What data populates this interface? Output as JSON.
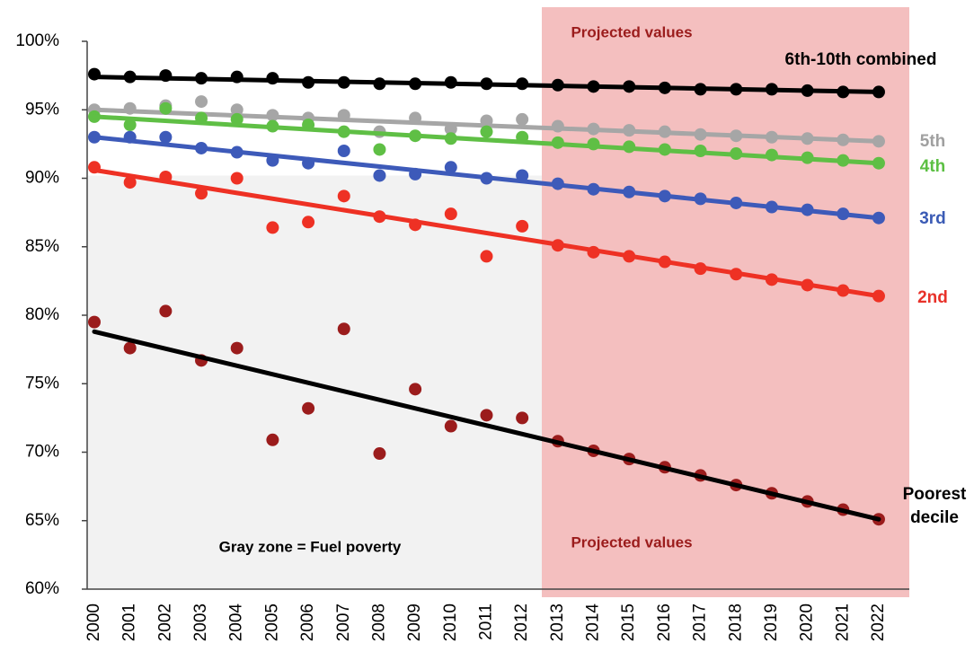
{
  "chart_data": {
    "type": "scatter-trend",
    "categories": [
      "2000",
      "2001",
      "2002",
      "2003",
      "2004",
      "2005",
      "2006",
      "2007",
      "2008",
      "2009",
      "2010",
      "2011",
      "2012",
      "2013",
      "2014",
      "2015",
      "2016",
      "2017",
      "2018",
      "2019",
      "2020",
      "2021",
      "2022"
    ],
    "ylim": [
      60,
      100
    ],
    "yticks": [
      {
        "value": 60,
        "label": "60%"
      },
      {
        "value": 65,
        "label": "65%"
      },
      {
        "value": 70,
        "label": "70%"
      },
      {
        "value": 75,
        "label": "75%"
      },
      {
        "value": 80,
        "label": "80%"
      },
      {
        "value": 85,
        "label": "85%"
      },
      {
        "value": 90,
        "label": "90%"
      },
      {
        "value": 95,
        "label": "95%"
      },
      {
        "value": 100,
        "label": "100%"
      }
    ],
    "fuel_poverty_level": 90.2,
    "annotations": [
      "Projected values",
      "Projected values",
      "Gray zone = Fuel poverty"
    ],
    "series": [
      {
        "name": "6th-10th combined",
        "color": "#000000",
        "label_color": "#000000",
        "trend_color": "#000000",
        "trend": [
          97.4,
          96.3
        ],
        "values": [
          97.6,
          97.4,
          97.5,
          97.3,
          97.4,
          97.3,
          97.0,
          97.0,
          96.9,
          96.9,
          97.0,
          96.9,
          96.9,
          96.8,
          96.7,
          96.7,
          96.6,
          96.5,
          96.5,
          96.5,
          96.4,
          96.3,
          96.3
        ]
      },
      {
        "name": "5th",
        "color": "#a6a6a6",
        "label_color": "#a0a0a0",
        "trend_color": "#a6a6a6",
        "trend": [
          95.0,
          92.7
        ],
        "values": [
          95.0,
          95.1,
          95.3,
          95.6,
          95.0,
          94.6,
          94.4,
          94.6,
          93.4,
          94.4,
          93.6,
          94.2,
          94.3,
          93.8,
          93.6,
          93.5,
          93.4,
          93.2,
          93.1,
          93.0,
          92.9,
          92.8,
          92.7
        ]
      },
      {
        "name": "4th",
        "color": "#5fbf45",
        "label_color": "#5cc043",
        "trend_color": "#5fbf45",
        "trend": [
          94.5,
          91.1
        ],
        "values": [
          94.5,
          93.9,
          95.1,
          94.4,
          94.3,
          93.8,
          93.9,
          93.4,
          92.1,
          93.1,
          92.9,
          93.4,
          93.0,
          92.6,
          92.5,
          92.3,
          92.1,
          92.0,
          91.8,
          91.7,
          91.5,
          91.3,
          91.1
        ]
      },
      {
        "name": "3rd",
        "color": "#3d5ab9",
        "label_color": "#3b5bb5",
        "trend_color": "#3d5ab9",
        "trend": [
          93.0,
          87.1
        ],
        "values": [
          93.0,
          93.0,
          93.0,
          92.2,
          91.9,
          91.3,
          91.1,
          92.0,
          90.2,
          90.3,
          90.8,
          90.0,
          90.2,
          89.6,
          89.2,
          89.0,
          88.7,
          88.5,
          88.2,
          87.9,
          87.7,
          87.4,
          87.1
        ]
      },
      {
        "name": "2nd",
        "color": "#ee3124",
        "label_color": "#e8322a",
        "trend_color": "#ee3124",
        "trend": [
          90.6,
          81.4
        ],
        "values": [
          90.8,
          89.7,
          90.1,
          88.9,
          90.0,
          86.4,
          86.8,
          88.7,
          87.2,
          86.6,
          87.4,
          84.3,
          86.5,
          85.1,
          84.6,
          84.3,
          83.9,
          83.4,
          83.0,
          82.6,
          82.2,
          81.8,
          81.4
        ]
      },
      {
        "name": "Poorest decile",
        "color": "#9b1c1c",
        "label_color": "#000000",
        "trend_color": "#000000",
        "trend": [
          78.8,
          65.1
        ],
        "values": [
          79.5,
          77.6,
          80.3,
          76.7,
          77.6,
          70.9,
          73.2,
          79.0,
          69.9,
          74.6,
          71.9,
          72.7,
          72.5,
          70.8,
          70.1,
          69.5,
          68.9,
          68.3,
          67.6,
          67.0,
          66.4,
          65.8,
          65.1
        ]
      }
    ]
  }
}
